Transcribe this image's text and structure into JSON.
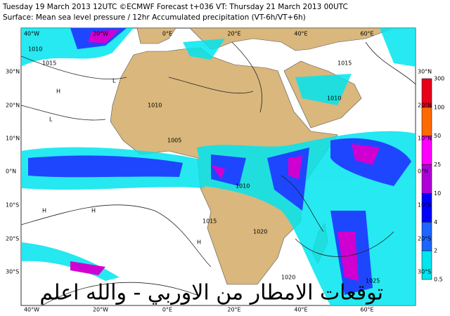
{
  "header": {
    "line1": "Tuesday 19 March 2013 12UTC ©ECMWF Forecast t+036 VT: Thursday 21 March 2013 00UTC",
    "line2": "Surface: Mean sea level pressure / 12hr Accumulated precipitation (VT-6h/VT+6h)"
  },
  "map": {
    "longitude_labels": [
      "40°W",
      "20°W",
      "0°E",
      "20°E",
      "40°E",
      "60°E"
    ],
    "latitude_labels": [
      "30°N",
      "20°N",
      "10°N",
      "0°N",
      "10°S",
      "20°S",
      "30°S"
    ],
    "isobar_labels": [
      1010,
      1015,
      1010,
      1005,
      1010,
      1015,
      1020,
      1015,
      1010,
      1020,
      1025
    ],
    "pressure_centers": [
      "H",
      "H",
      "L",
      "H",
      "H",
      "L"
    ],
    "watermark": "توقعات الامطار من الاوربي - والله اعلم"
  },
  "legend": {
    "levels": [
      300,
      100,
      50,
      25,
      10,
      4,
      2,
      0.5
    ]
  }
}
